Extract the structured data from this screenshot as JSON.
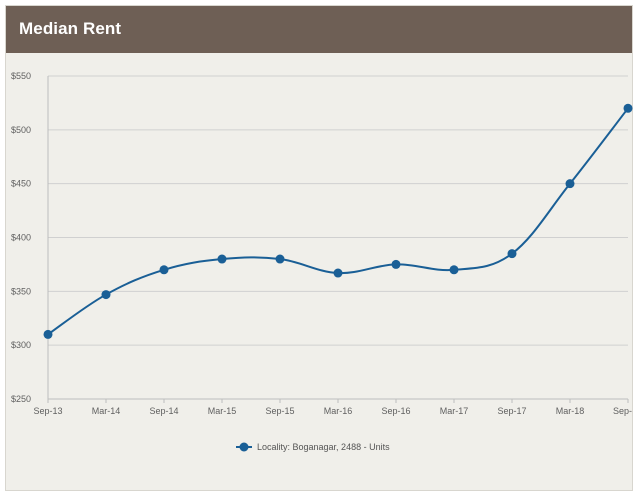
{
  "header": {
    "title": "Median Rent"
  },
  "colors": {
    "header_bg": "#6e5f55",
    "plot_bg": "#f0efea",
    "series": "#1a5f96",
    "grid": "#d0d0d0"
  },
  "chart_data": {
    "type": "line",
    "title": "Median Rent",
    "xlabel": "",
    "ylabel": "",
    "categories": [
      "Sep-13",
      "Mar-14",
      "Sep-14",
      "Mar-15",
      "Sep-15",
      "Mar-16",
      "Sep-16",
      "Mar-17",
      "Sep-17",
      "Mar-18",
      "Sep-"
    ],
    "y_ticks": [
      "$250",
      "$300",
      "$350",
      "$400",
      "$450",
      "$500",
      "$550"
    ],
    "ylim": [
      250,
      550
    ],
    "grid": true,
    "legend_position": "bottom",
    "series": [
      {
        "name": "Locality: Boganagar, 2488 - Units",
        "values": [
          310,
          347,
          370,
          380,
          380,
          367,
          375,
          370,
          385,
          450,
          520
        ]
      }
    ]
  }
}
